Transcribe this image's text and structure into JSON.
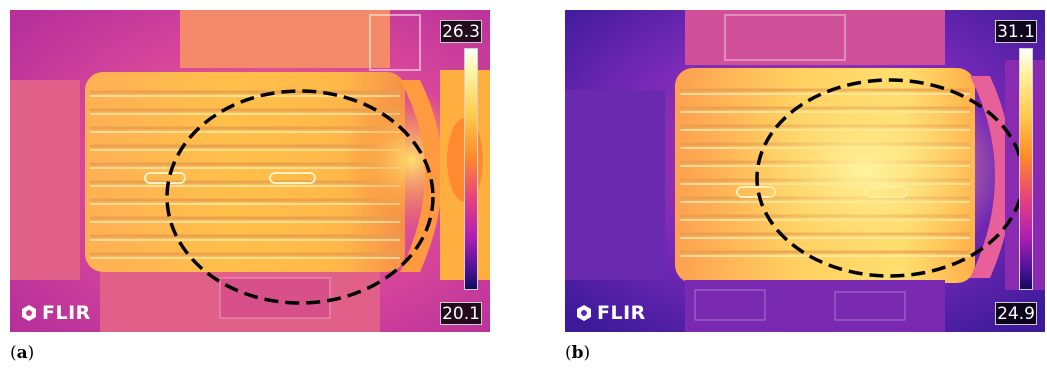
{
  "panels": [
    {
      "caption_open": "(",
      "caption_letter": "a",
      "caption_close": ")",
      "scale_max": "26.3",
      "scale_min": "20.1",
      "logo_text": "FLIR"
    },
    {
      "caption_open": "(",
      "caption_letter": "b",
      "caption_close": ")",
      "scale_max": "31.1",
      "scale_min": "24.9",
      "logo_text": "FLIR"
    }
  ],
  "colors": {
    "palette": "ironbow",
    "panel_a_background": "#d84a9a",
    "panel_b_background": "#5a2ab8",
    "marker_ellipse": "#000000"
  },
  "icons": {
    "logo": "flir-logo-icon"
  }
}
